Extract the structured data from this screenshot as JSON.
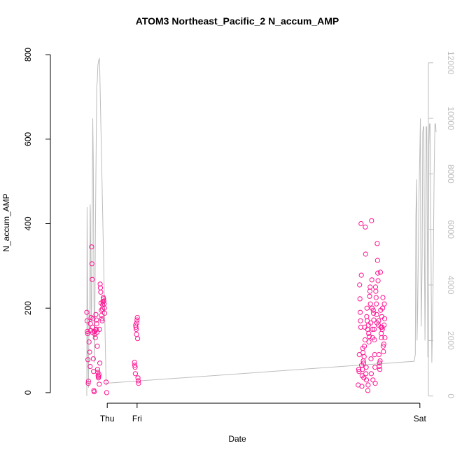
{
  "chart_data": {
    "type": "scatter",
    "title": "ATOM3 Northeast_Pacific_2 N_accum_AMP",
    "xlabel": "Date",
    "ylabel": "N_accum_AMP",
    "x_ticks": [
      "Thu",
      "Fri",
      "Sat"
    ],
    "xlim": [
      -0.3,
      1.03
    ],
    "ylim": [
      -25,
      830
    ],
    "y_ticks": [
      0,
      200,
      400,
      600,
      800
    ],
    "y2lim": [
      -260,
      12750
    ],
    "y2_ticks": [
      0,
      2000,
      4000,
      6000,
      8000,
      10000,
      12000
    ],
    "colors": {
      "points": "#ff1493",
      "line": "#bdbdbd",
      "axes": "#000000",
      "axis2": "#bdbdbd"
    },
    "series": [
      {
        "type": "points",
        "axis": "left",
        "marker": "open-circle",
        "points": [
          [
            -0.172,
            190
          ],
          [
            -0.171,
            170
          ],
          [
            -0.17,
            145
          ],
          [
            -0.169,
            140
          ],
          [
            -0.168,
            78
          ],
          [
            -0.167,
            22
          ],
          [
            -0.166,
            27
          ],
          [
            -0.164,
            120
          ],
          [
            -0.162,
            96
          ],
          [
            -0.16,
            62
          ],
          [
            -0.159,
            163
          ],
          [
            -0.158,
            147
          ],
          [
            -0.157,
            178
          ],
          [
            -0.155,
            345
          ],
          [
            -0.154,
            305
          ],
          [
            -0.153,
            268
          ],
          [
            -0.152,
            155
          ],
          [
            -0.151,
            142
          ],
          [
            -0.15,
            175
          ],
          [
            -0.149,
            80
          ],
          [
            -0.148,
            50
          ],
          [
            -0.147,
            5
          ],
          [
            -0.146,
            2
          ],
          [
            -0.145,
            145
          ],
          [
            -0.143,
            138
          ],
          [
            -0.142,
            130
          ],
          [
            -0.141,
            148
          ],
          [
            -0.14,
            185
          ],
          [
            -0.139,
            150
          ],
          [
            -0.138,
            172
          ],
          [
            -0.137,
            163
          ],
          [
            -0.136,
            143
          ],
          [
            -0.135,
            110
          ],
          [
            -0.134,
            55
          ],
          [
            -0.133,
            48
          ],
          [
            -0.132,
            40
          ],
          [
            -0.131,
            35
          ],
          [
            -0.13,
            38
          ],
          [
            -0.129,
            43
          ],
          [
            -0.128,
            20
          ],
          [
            -0.127,
            150
          ],
          [
            -0.126,
            70
          ],
          [
            -0.125,
            257
          ],
          [
            -0.124,
            248
          ],
          [
            -0.123,
            238
          ],
          [
            -0.122,
            212
          ],
          [
            -0.121,
            195
          ],
          [
            -0.12,
            183
          ],
          [
            -0.119,
            175
          ],
          [
            -0.118,
            170
          ],
          [
            -0.117,
            198
          ],
          [
            -0.116,
            208
          ],
          [
            -0.115,
            215
          ],
          [
            -0.114,
            225
          ],
          [
            -0.113,
            222
          ],
          [
            -0.112,
            217
          ],
          [
            -0.111,
            210
          ],
          [
            -0.11,
            200
          ],
          [
            -0.109,
            188
          ],
          [
            -0.104,
            25
          ],
          [
            -0.102,
            0
          ],
          [
            -0.004,
            72
          ],
          [
            -0.003,
            65
          ],
          [
            -0.002,
            60
          ],
          [
            -0.001,
            45
          ],
          [
            0.0,
            160
          ],
          [
            0.001,
            155
          ],
          [
            0.002,
            150
          ],
          [
            0.003,
            138
          ],
          [
            0.004,
            165
          ],
          [
            0.005,
            172
          ],
          [
            0.006,
            178
          ],
          [
            0.007,
            128
          ],
          [
            0.008,
            35
          ],
          [
            0.009,
            28
          ],
          [
            0.01,
            22
          ],
          [
            0.783,
            18
          ],
          [
            0.785,
            55
          ],
          [
            0.786,
            50
          ],
          [
            0.787,
            90
          ],
          [
            0.788,
            255
          ],
          [
            0.789,
            222
          ],
          [
            0.79,
            190
          ],
          [
            0.791,
            170
          ],
          [
            0.792,
            155
          ],
          [
            0.793,
            400
          ],
          [
            0.794,
            278
          ],
          [
            0.795,
            65
          ],
          [
            0.796,
            15
          ],
          [
            0.797,
            40
          ],
          [
            0.798,
            55
          ],
          [
            0.799,
            105
          ],
          [
            0.8,
            95
          ],
          [
            0.801,
            75
          ],
          [
            0.802,
            70
          ],
          [
            0.803,
            35
          ],
          [
            0.804,
            85
          ],
          [
            0.805,
            110
          ],
          [
            0.806,
            155
          ],
          [
            0.807,
            125
          ],
          [
            0.808,
            392
          ],
          [
            0.809,
            328
          ],
          [
            0.81,
            45
          ],
          [
            0.811,
            60
          ],
          [
            0.812,
            30
          ],
          [
            0.813,
            180
          ],
          [
            0.814,
            200
          ],
          [
            0.815,
            170
          ],
          [
            0.816,
            150
          ],
          [
            0.817,
            5
          ],
          [
            0.818,
            18
          ],
          [
            0.819,
            160
          ],
          [
            0.82,
            140
          ],
          [
            0.821,
            120
          ],
          [
            0.822,
            133
          ],
          [
            0.823,
            228
          ],
          [
            0.824,
            240
          ],
          [
            0.825,
            250
          ],
          [
            0.826,
            210
          ],
          [
            0.827,
            165
          ],
          [
            0.828,
            80
          ],
          [
            0.829,
            45
          ],
          [
            0.83,
            407
          ],
          [
            0.831,
            267
          ],
          [
            0.832,
            200
          ],
          [
            0.833,
            150
          ],
          [
            0.834,
            130
          ],
          [
            0.835,
            30
          ],
          [
            0.836,
            195
          ],
          [
            0.837,
            188
          ],
          [
            0.838,
            172
          ],
          [
            0.839,
            150
          ],
          [
            0.84,
            125
          ],
          [
            0.841,
            90
          ],
          [
            0.842,
            60
          ],
          [
            0.843,
            22
          ],
          [
            0.844,
            250
          ],
          [
            0.845,
            240
          ],
          [
            0.846,
            225
          ],
          [
            0.847,
            210
          ],
          [
            0.848,
            185
          ],
          [
            0.849,
            165
          ],
          [
            0.85,
            353
          ],
          [
            0.851,
            313
          ],
          [
            0.852,
            283
          ],
          [
            0.853,
            265
          ],
          [
            0.854,
            160
          ],
          [
            0.855,
            170
          ],
          [
            0.856,
            90
          ],
          [
            0.857,
            62
          ],
          [
            0.858,
            70
          ],
          [
            0.859,
            55
          ],
          [
            0.86,
            75
          ],
          [
            0.861,
            285
          ],
          [
            0.862,
            195
          ],
          [
            0.863,
            155
          ],
          [
            0.864,
            140
          ],
          [
            0.865,
            130
          ],
          [
            0.866,
            180
          ],
          [
            0.867,
            155
          ],
          [
            0.868,
            150
          ],
          [
            0.869,
            200
          ],
          [
            0.87,
            225
          ],
          [
            0.871,
            110
          ],
          [
            0.872,
            97
          ],
          [
            0.873,
            115
          ],
          [
            0.874,
            160
          ],
          [
            0.875,
            210
          ],
          [
            0.876,
            175
          ],
          [
            0.877,
            130
          ]
        ]
      },
      {
        "type": "line",
        "axis": "right",
        "points": [
          [
            -0.172,
            0
          ],
          [
            -0.171,
            6800
          ],
          [
            -0.17,
            5500
          ],
          [
            -0.168,
            1300
          ],
          [
            -0.166,
            300
          ],
          [
            -0.164,
            3000
          ],
          [
            -0.162,
            2200
          ],
          [
            -0.16,
            6900
          ],
          [
            -0.159,
            6600
          ],
          [
            -0.158,
            4900
          ],
          [
            -0.157,
            2700
          ],
          [
            -0.155,
            3200
          ],
          [
            -0.153,
            6500
          ],
          [
            -0.151,
            10000
          ],
          [
            -0.149,
            8500
          ],
          [
            -0.147,
            4000
          ],
          [
            -0.145,
            1200
          ],
          [
            -0.143,
            3500
          ],
          [
            -0.141,
            6800
          ],
          [
            -0.139,
            9000
          ],
          [
            -0.137,
            11200
          ],
          [
            -0.135,
            11300
          ],
          [
            -0.133,
            11900
          ],
          [
            -0.13,
            12100
          ],
          [
            -0.127,
            12150
          ],
          [
            -0.104,
            400
          ],
          [
            -0.1,
            460
          ],
          [
            0.98,
            1250
          ],
          [
            0.984,
            1500
          ],
          [
            0.986,
            6500
          ],
          [
            0.989,
            7800
          ],
          [
            0.99,
            2000
          ],
          [
            0.992,
            3000
          ],
          [
            0.995,
            5500
          ],
          [
            0.997,
            7200
          ],
          [
            0.999,
            8300
          ],
          [
            1.002,
            10000
          ],
          [
            1.003,
            5500
          ],
          [
            1.005,
            2500
          ],
          [
            1.008,
            5000
          ],
          [
            1.01,
            9500
          ],
          [
            1.012,
            9700
          ],
          [
            1.014,
            9700
          ],
          [
            1.016,
            5400
          ],
          [
            1.018,
            2000
          ],
          [
            1.02,
            4500
          ],
          [
            1.022,
            9700
          ],
          [
            1.024,
            9700
          ],
          [
            1.026,
            6000
          ],
          [
            1.028,
            1400
          ],
          [
            1.03,
            4000
          ],
          [
            1.032,
            9000
          ],
          [
            1.034,
            9800
          ],
          [
            1.036,
            9800
          ],
          [
            1.038,
            7500
          ],
          [
            1.04,
            3700
          ],
          [
            1.042,
            1200
          ],
          [
            1.046,
            3500
          ],
          [
            1.05,
            7800
          ],
          [
            1.053,
            9800
          ],
          [
            1.055,
            9800
          ],
          [
            1.057,
            9500
          ]
        ]
      }
    ]
  }
}
